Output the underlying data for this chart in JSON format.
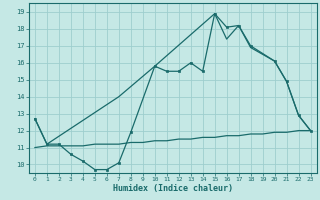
{
  "xlabel": "Humidex (Indice chaleur)",
  "bg_color": "#c5e8e5",
  "grid_color": "#9ecece",
  "line_color": "#1a6b6b",
  "xlim": [
    -0.5,
    23.5
  ],
  "ylim": [
    9.5,
    19.5
  ],
  "yticks": [
    10,
    11,
    12,
    13,
    14,
    15,
    16,
    17,
    18,
    19
  ],
  "xticks": [
    0,
    1,
    2,
    3,
    4,
    5,
    6,
    7,
    8,
    9,
    10,
    11,
    12,
    13,
    14,
    15,
    16,
    17,
    18,
    19,
    20,
    21,
    22,
    23
  ],
  "line1_x": [
    0,
    1,
    2,
    3,
    4,
    5,
    6,
    7,
    8,
    10,
    11,
    12,
    13,
    14,
    15,
    16,
    17,
    18,
    20,
    21,
    22,
    23
  ],
  "line1_y": [
    12.7,
    11.2,
    11.2,
    10.6,
    10.2,
    9.7,
    9.7,
    10.1,
    11.9,
    15.8,
    15.5,
    15.5,
    16.0,
    15.5,
    18.9,
    18.1,
    18.2,
    17.0,
    16.1,
    14.9,
    12.9,
    12.0
  ],
  "line2_x": [
    0,
    1,
    7,
    10,
    15,
    16,
    17,
    18,
    20,
    21,
    22,
    23
  ],
  "line2_y": [
    12.7,
    11.2,
    14.0,
    15.8,
    18.9,
    17.4,
    18.2,
    16.9,
    16.1,
    14.9,
    12.9,
    12.0
  ],
  "line3_x": [
    0,
    1,
    2,
    3,
    4,
    5,
    6,
    7,
    8,
    9,
    10,
    11,
    12,
    13,
    14,
    15,
    16,
    17,
    18,
    19,
    20,
    21,
    22,
    23
  ],
  "line3_y": [
    11.0,
    11.1,
    11.1,
    11.1,
    11.1,
    11.2,
    11.2,
    11.2,
    11.3,
    11.3,
    11.4,
    11.4,
    11.5,
    11.5,
    11.6,
    11.6,
    11.7,
    11.7,
    11.8,
    11.8,
    11.9,
    11.9,
    12.0,
    12.0
  ]
}
